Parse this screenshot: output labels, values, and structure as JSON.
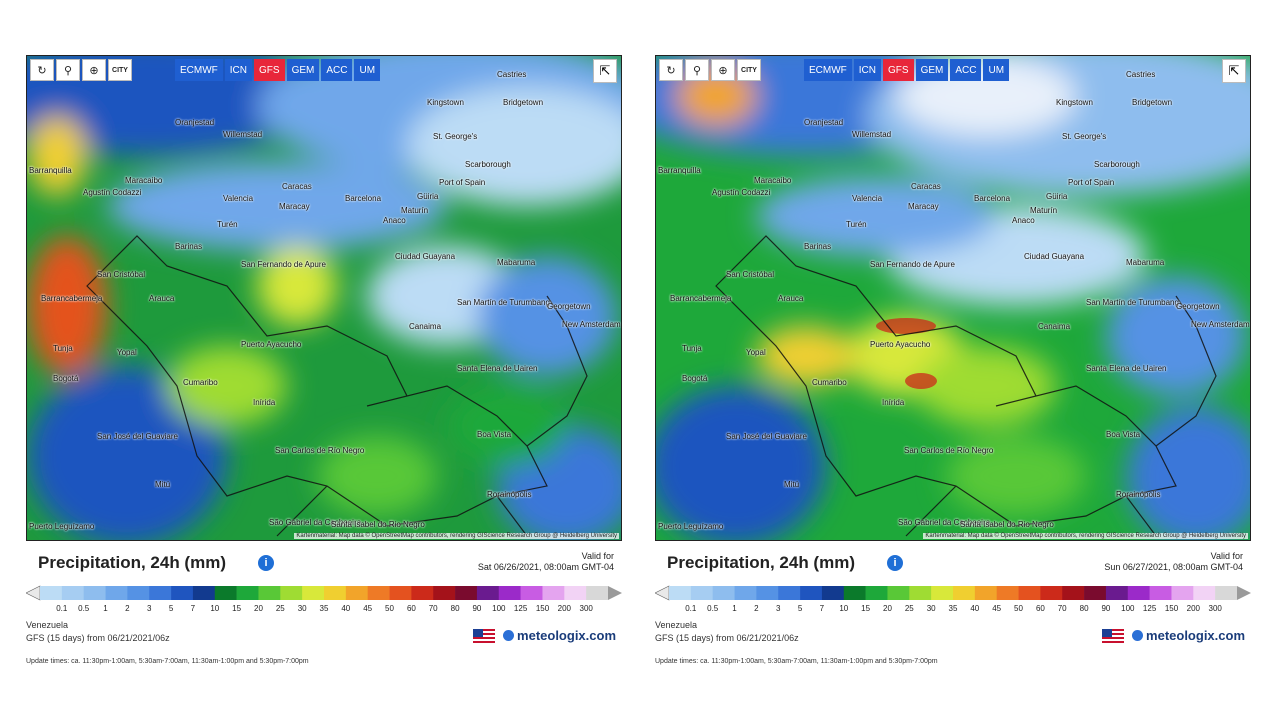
{
  "panels": [
    {
      "toolbar": {
        "reload_icon": "reload-icon",
        "location_icon": "location-pin-icon",
        "zoom_icon": "zoom-icon",
        "city_label": "CITY"
      },
      "models": [
        "ECMWF",
        "ICN",
        "GFS",
        "GEM",
        "ACC",
        "UM"
      ],
      "active_model": "GFS",
      "attribution": "Kartenmaterial: Map data © OpenStreetMap contributors, rendering GIScience Research Group @ Heidelberg University",
      "cities": [
        "Castries",
        "Kingstown",
        "Bridgetown",
        "Oranjestad",
        "Willemstad",
        "St. George's",
        "Scarborough",
        "Barranquilla",
        "Maracaibo",
        "Caracas",
        "Port of Spain",
        "Agustín Codazzi",
        "Valencia",
        "Maracay",
        "Barcelona",
        "Güiria",
        "Maturín",
        "Turén",
        "Anaco",
        "Barinas",
        "Ciudad Guayana",
        "Mabaruma",
        "San Cristóbal",
        "San Fernando de Apure",
        "Barrancabermeja",
        "Arauca",
        "San Martín de Turumbang",
        "Georgetown",
        "New Amsterdam",
        "Canaima",
        "Tunja",
        "Yopal",
        "Puerto Ayacucho",
        "Bogotá",
        "Santa Elena de Uairen",
        "Cumaribo",
        "Inírida",
        "Boa Vista",
        "San José del Guaviare",
        "San Carlos de Río Negro",
        "Mitú",
        "Rorainópolis",
        "Puerto Leguízamo",
        "São Gabriel da Cachoeira",
        "Santa Isabel do Rio Negro"
      ],
      "legend_title": "Precipitation, 24h (mm)",
      "valid_for_label": "Valid for",
      "valid_for": "Sat 06/26/2021, 08:00am GMT-04",
      "region": "Venezuela",
      "model_run": "GFS (15 days) from 06/21/2021/06z",
      "brand": "meteologix.com",
      "update_times": "Update times: ca. 11:30pm-1:00am, 5:30am-7:00am, 11:30am-1:00pm and 5:30pm-7:00pm"
    },
    {
      "toolbar": {
        "reload_icon": "reload-icon",
        "location_icon": "location-pin-icon",
        "zoom_icon": "zoom-icon",
        "city_label": "CITY"
      },
      "models": [
        "ECMWF",
        "ICN",
        "GFS",
        "GEM",
        "ACC",
        "UM"
      ],
      "active_model": "GFS",
      "attribution": "Kartenmaterial: Map data © OpenStreetMap contributors, rendering GIScience Research Group @ Heidelberg University",
      "cities": [
        "Castries",
        "Kingstown",
        "Bridgetown",
        "Oranjestad",
        "Willemstad",
        "St. George's",
        "Scarborough",
        "Barranquilla",
        "Maracaibo",
        "Caracas",
        "Port of Spain",
        "Agustín Codazzi",
        "Valencia",
        "Maracay",
        "Barcelona",
        "Güiria",
        "Maturín",
        "Turén",
        "Anaco",
        "Barinas",
        "Ciudad Guayana",
        "Mabaruma",
        "San Cristóbal",
        "San Fernando de Apure",
        "Barrancabermeja",
        "Arauca",
        "San Martín de Turumbang",
        "Georgetown",
        "New Amsterdam",
        "Canaima",
        "Tunja",
        "Yopal",
        "Puerto Ayacucho",
        "Bogotá",
        "Santa Elena de Uairen",
        "Cumaribo",
        "Inírida",
        "Boa Vista",
        "San José del Guaviare",
        "San Carlos de Río Negro",
        "Mitú",
        "Rorainópolis",
        "Puerto Leguízamo",
        "São Gabriel da Cachoeira",
        "Santa Isabel do Rio Negro"
      ],
      "legend_title": "Precipitation, 24h (mm)",
      "valid_for_label": "Valid for",
      "valid_for": "Sun 06/27/2021, 08:00am GMT-04",
      "region": "Venezuela",
      "model_run": "GFS (15 days) from 06/21/2021/06z",
      "brand": "meteologix.com",
      "update_times": "Update times: ca. 11:30pm-1:00am, 5:30am-7:00am, 11:30am-1:00pm and 5:30pm-7:00pm"
    }
  ],
  "scale": {
    "labels": [
      "0.1",
      "0.5",
      "1",
      "2",
      "3",
      "5",
      "7",
      "10",
      "15",
      "20",
      "25",
      "30",
      "35",
      "40",
      "45",
      "50",
      "60",
      "70",
      "80",
      "90",
      "100",
      "125",
      "150",
      "200",
      "300"
    ],
    "colors": [
      "#bcdcf5",
      "#a6cdf2",
      "#8ebdee",
      "#6fa7ea",
      "#5592e4",
      "#3b77d9",
      "#1f55bf",
      "#123a8f",
      "#0b7a2b",
      "#1ea83a",
      "#59c837",
      "#9fdc33",
      "#d8e83a",
      "#f0cf30",
      "#f2a42a",
      "#ee7a26",
      "#e4521f",
      "#cc2a1a",
      "#a4121a",
      "#7a0b2e",
      "#6a1b8f",
      "#9b2ac9",
      "#c85ce3",
      "#e4a4ef",
      "#f2d3f5",
      "#d8d8d8"
    ]
  }
}
